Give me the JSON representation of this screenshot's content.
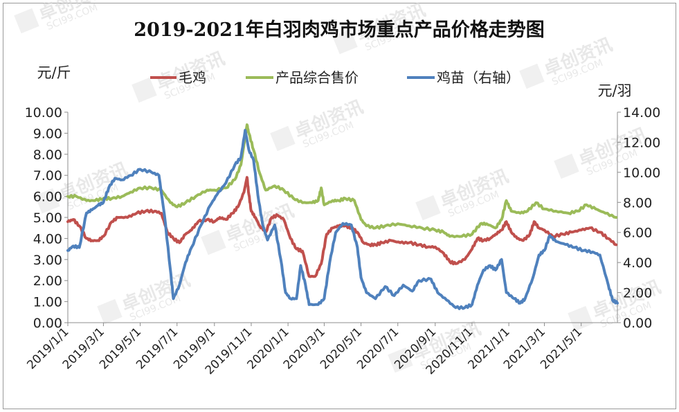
{
  "colors": {
    "maoji": "#c0504d",
    "zonghe": "#9bbb59",
    "jimiao": "#4f81bd"
  },
  "chart_data": {
    "type": "line",
    "title": "2019-2021年白羽肉鸡市场重点产品价格走势图",
    "left_unit": "元/斤",
    "right_unit": "元/羽",
    "watermark": "卓创资讯 SCI99.COM",
    "y_left": {
      "min": 0,
      "max": 10,
      "step": 1,
      "ticks": [
        "0.00",
        "1.00",
        "2.00",
        "3.00",
        "4.00",
        "5.00",
        "6.00",
        "7.00",
        "8.00",
        "9.00",
        "10.00"
      ]
    },
    "y_right": {
      "min": 0,
      "max": 14,
      "step": 2,
      "ticks": [
        "0.00",
        "2.00",
        "4.00",
        "6.00",
        "8.00",
        "10.00",
        "12.00",
        "14.00"
      ]
    },
    "x_start": "2019-01-01",
    "x_end": "2021-06-30",
    "x_ticks": [
      "2019/1/1",
      "2019/3/1",
      "2019/5/1",
      "2019/7/1",
      "2019/9/1",
      "2019/11/1",
      "2020/1/1",
      "2020/3/1",
      "2020/5/1",
      "2020/7/1",
      "2020/9/1",
      "2020/11/1",
      "2021/1/1",
      "2021/3/1",
      "2021/5/1"
    ],
    "series": [
      {
        "name": "毛鸡",
        "axis": "left",
        "color": "#c0504d",
        "points": [
          [
            "2019-01-01",
            4.8
          ],
          [
            "2019-01-10",
            4.9
          ],
          [
            "2019-01-20",
            4.6
          ],
          [
            "2019-02-01",
            4.0
          ],
          [
            "2019-02-10",
            3.9
          ],
          [
            "2019-02-20",
            3.9
          ],
          [
            "2019-03-01",
            4.1
          ],
          [
            "2019-03-15",
            4.8
          ],
          [
            "2019-03-25",
            5.0
          ],
          [
            "2019-04-10",
            5.0
          ],
          [
            "2019-04-25",
            5.2
          ],
          [
            "2019-05-10",
            5.3
          ],
          [
            "2019-05-25",
            5.3
          ],
          [
            "2019-06-05",
            5.2
          ],
          [
            "2019-06-15",
            4.3
          ],
          [
            "2019-06-25",
            4.0
          ],
          [
            "2019-07-05",
            3.8
          ],
          [
            "2019-07-15",
            4.2
          ],
          [
            "2019-07-25",
            4.4
          ],
          [
            "2019-08-05",
            4.8
          ],
          [
            "2019-08-20",
            4.9
          ],
          [
            "2019-09-01",
            4.8
          ],
          [
            "2019-09-10",
            5.0
          ],
          [
            "2019-09-20",
            4.9
          ],
          [
            "2019-10-01",
            5.2
          ],
          [
            "2019-10-10",
            5.5
          ],
          [
            "2019-10-20",
            6.2
          ],
          [
            "2019-10-25",
            6.9
          ],
          [
            "2019-10-28",
            6.1
          ],
          [
            "2019-11-01",
            5.3
          ],
          [
            "2019-11-08",
            5.0
          ],
          [
            "2019-11-15",
            4.6
          ],
          [
            "2019-11-25",
            4.3
          ],
          [
            "2019-12-05",
            5.0
          ],
          [
            "2019-12-15",
            5.1
          ],
          [
            "2019-12-25",
            4.9
          ],
          [
            "2020-01-05",
            4.0
          ],
          [
            "2020-01-15",
            3.5
          ],
          [
            "2020-01-25",
            3.4
          ],
          [
            "2020-02-05",
            2.2
          ],
          [
            "2020-02-15",
            2.2
          ],
          [
            "2020-02-25",
            2.8
          ],
          [
            "2020-03-05",
            4.2
          ],
          [
            "2020-03-15",
            4.5
          ],
          [
            "2020-03-25",
            4.6
          ],
          [
            "2020-04-05",
            4.6
          ],
          [
            "2020-04-15",
            4.5
          ],
          [
            "2020-04-25",
            4.3
          ],
          [
            "2020-05-05",
            3.8
          ],
          [
            "2020-05-15",
            3.7
          ],
          [
            "2020-05-25",
            3.7
          ],
          [
            "2020-06-05",
            3.8
          ],
          [
            "2020-06-20",
            3.9
          ],
          [
            "2020-07-05",
            3.8
          ],
          [
            "2020-07-20",
            3.8
          ],
          [
            "2020-08-05",
            3.7
          ],
          [
            "2020-08-20",
            3.6
          ],
          [
            "2020-09-01",
            3.6
          ],
          [
            "2020-09-15",
            3.3
          ],
          [
            "2020-09-25",
            2.9
          ],
          [
            "2020-10-05",
            2.8
          ],
          [
            "2020-10-20",
            3.0
          ],
          [
            "2020-11-01",
            3.5
          ],
          [
            "2020-11-10",
            4.0
          ],
          [
            "2020-11-20",
            3.9
          ],
          [
            "2020-12-01",
            4.0
          ],
          [
            "2020-12-10",
            4.2
          ],
          [
            "2020-12-20",
            4.4
          ],
          [
            "2020-12-28",
            4.8
          ],
          [
            "2021-01-05",
            4.3
          ],
          [
            "2021-01-15",
            4.0
          ],
          [
            "2021-01-25",
            3.9
          ],
          [
            "2021-02-05",
            4.2
          ],
          [
            "2021-02-12",
            4.8
          ],
          [
            "2021-02-20",
            4.5
          ],
          [
            "2021-03-01",
            4.4
          ],
          [
            "2021-03-15",
            4.1
          ],
          [
            "2021-04-01",
            4.2
          ],
          [
            "2021-04-15",
            4.3
          ],
          [
            "2021-05-01",
            4.4
          ],
          [
            "2021-05-15",
            4.5
          ],
          [
            "2021-06-01",
            4.3
          ],
          [
            "2021-06-15",
            4.0
          ],
          [
            "2021-06-28",
            3.7
          ]
        ]
      },
      {
        "name": "产品综合售价",
        "axis": "left",
        "color": "#9bbb59",
        "points": [
          [
            "2019-01-01",
            6.0
          ],
          [
            "2019-01-15",
            6.0
          ],
          [
            "2019-02-01",
            5.8
          ],
          [
            "2019-02-15",
            5.8
          ],
          [
            "2019-03-01",
            5.9
          ],
          [
            "2019-03-15",
            5.9
          ],
          [
            "2019-04-01",
            6.0
          ],
          [
            "2019-04-15",
            6.2
          ],
          [
            "2019-05-01",
            6.4
          ],
          [
            "2019-05-20",
            6.4
          ],
          [
            "2019-06-05",
            6.3
          ],
          [
            "2019-06-20",
            5.7
          ],
          [
            "2019-07-01",
            5.5
          ],
          [
            "2019-07-15",
            5.7
          ],
          [
            "2019-08-01",
            6.0
          ],
          [
            "2019-08-20",
            6.3
          ],
          [
            "2019-09-01",
            6.3
          ],
          [
            "2019-09-20",
            6.4
          ],
          [
            "2019-10-05",
            6.8
          ],
          [
            "2019-10-15",
            7.5
          ],
          [
            "2019-10-25",
            9.4
          ],
          [
            "2019-10-28",
            9.0
          ],
          [
            "2019-11-05",
            8.2
          ],
          [
            "2019-11-15",
            7.1
          ],
          [
            "2019-11-25",
            6.3
          ],
          [
            "2019-12-10",
            6.5
          ],
          [
            "2019-12-25",
            6.3
          ],
          [
            "2020-01-10",
            5.9
          ],
          [
            "2020-01-25",
            5.7
          ],
          [
            "2020-02-10",
            5.7
          ],
          [
            "2020-02-20",
            5.8
          ],
          [
            "2020-02-25",
            6.4
          ],
          [
            "2020-03-01",
            5.6
          ],
          [
            "2020-03-15",
            5.8
          ],
          [
            "2020-03-25",
            5.8
          ],
          [
            "2020-04-05",
            5.9
          ],
          [
            "2020-04-20",
            5.8
          ],
          [
            "2020-05-01",
            4.9
          ],
          [
            "2020-05-10",
            4.6
          ],
          [
            "2020-05-25",
            4.5
          ],
          [
            "2020-06-10",
            4.6
          ],
          [
            "2020-07-01",
            4.7
          ],
          [
            "2020-07-20",
            4.6
          ],
          [
            "2020-08-10",
            4.5
          ],
          [
            "2020-09-01",
            4.4
          ],
          [
            "2020-09-15",
            4.3
          ],
          [
            "2020-09-25",
            4.1
          ],
          [
            "2020-10-15",
            4.1
          ],
          [
            "2020-11-01",
            4.2
          ],
          [
            "2020-11-15",
            4.7
          ],
          [
            "2020-11-25",
            4.7
          ],
          [
            "2020-12-10",
            4.5
          ],
          [
            "2020-12-20",
            4.9
          ],
          [
            "2020-12-28",
            5.8
          ],
          [
            "2021-01-05",
            5.3
          ],
          [
            "2021-01-20",
            5.2
          ],
          [
            "2021-02-01",
            5.3
          ],
          [
            "2021-02-15",
            5.7
          ],
          [
            "2021-03-01",
            5.4
          ],
          [
            "2021-03-20",
            5.3
          ],
          [
            "2021-04-10",
            5.2
          ],
          [
            "2021-04-25",
            5.3
          ],
          [
            "2021-05-10",
            5.6
          ],
          [
            "2021-05-25",
            5.4
          ],
          [
            "2021-06-10",
            5.2
          ],
          [
            "2021-06-28",
            5.0
          ]
        ]
      },
      {
        "name": "鸡苗（右轴）",
        "axis": "right",
        "color": "#4f81bd",
        "points": [
          [
            "2019-01-01",
            4.8
          ],
          [
            "2019-01-10",
            5.1
          ],
          [
            "2019-01-20",
            5.0
          ],
          [
            "2019-02-01",
            7.3
          ],
          [
            "2019-02-10",
            7.5
          ],
          [
            "2019-02-20",
            7.8
          ],
          [
            "2019-03-01",
            8.0
          ],
          [
            "2019-03-10",
            9.0
          ],
          [
            "2019-03-20",
            9.6
          ],
          [
            "2019-04-01",
            9.5
          ],
          [
            "2019-04-15",
            9.8
          ],
          [
            "2019-05-01",
            10.2
          ],
          [
            "2019-05-20",
            10.0
          ],
          [
            "2019-06-01",
            9.8
          ],
          [
            "2019-06-10",
            7.2
          ],
          [
            "2019-06-20",
            3.5
          ],
          [
            "2019-06-25",
            1.6
          ],
          [
            "2019-07-05",
            2.5
          ],
          [
            "2019-07-15",
            4.0
          ],
          [
            "2019-07-25",
            5.0
          ],
          [
            "2019-08-10",
            6.5
          ],
          [
            "2019-08-25",
            7.8
          ],
          [
            "2019-09-05",
            8.5
          ],
          [
            "2019-09-20",
            9.3
          ],
          [
            "2019-10-05",
            10.5
          ],
          [
            "2019-10-15",
            11.0
          ],
          [
            "2019-10-22",
            12.8
          ],
          [
            "2019-10-28",
            11.5
          ],
          [
            "2019-11-05",
            10.8
          ],
          [
            "2019-11-12",
            8.5
          ],
          [
            "2019-11-20",
            6.5
          ],
          [
            "2019-11-28",
            5.5
          ],
          [
            "2019-12-10",
            6.5
          ],
          [
            "2019-12-20",
            4.2
          ],
          [
            "2019-12-28",
            2.0
          ],
          [
            "2020-01-05",
            1.6
          ],
          [
            "2020-01-15",
            1.6
          ],
          [
            "2020-01-22",
            3.8
          ],
          [
            "2020-01-30",
            2.5
          ],
          [
            "2020-02-05",
            1.2
          ],
          [
            "2020-02-20",
            1.2
          ],
          [
            "2020-03-01",
            1.6
          ],
          [
            "2020-03-10",
            4.0
          ],
          [
            "2020-03-20",
            6.0
          ],
          [
            "2020-04-01",
            6.6
          ],
          [
            "2020-04-15",
            6.5
          ],
          [
            "2020-04-25",
            5.0
          ],
          [
            "2020-05-01",
            3.0
          ],
          [
            "2020-05-10",
            2.0
          ],
          [
            "2020-05-25",
            1.6
          ],
          [
            "2020-06-10",
            2.4
          ],
          [
            "2020-06-25",
            1.8
          ],
          [
            "2020-07-10",
            2.5
          ],
          [
            "2020-07-25",
            2.1
          ],
          [
            "2020-08-05",
            2.8
          ],
          [
            "2020-08-25",
            2.9
          ],
          [
            "2020-09-05",
            2.0
          ],
          [
            "2020-09-20",
            1.5
          ],
          [
            "2020-10-05",
            1.0
          ],
          [
            "2020-10-20",
            1.0
          ],
          [
            "2020-11-01",
            1.2
          ],
          [
            "2020-11-10",
            2.5
          ],
          [
            "2020-11-20",
            3.5
          ],
          [
            "2020-12-01",
            3.8
          ],
          [
            "2020-12-10",
            3.5
          ],
          [
            "2020-12-20",
            4.2
          ],
          [
            "2020-12-28",
            2.0
          ],
          [
            "2021-01-10",
            1.6
          ],
          [
            "2021-01-20",
            1.3
          ],
          [
            "2021-01-28",
            1.6
          ],
          [
            "2021-02-10",
            3.0
          ],
          [
            "2021-02-20",
            4.5
          ],
          [
            "2021-03-01",
            4.8
          ],
          [
            "2021-03-10",
            5.8
          ],
          [
            "2021-03-20",
            5.4
          ],
          [
            "2021-04-05",
            5.2
          ],
          [
            "2021-04-20",
            5.0
          ],
          [
            "2021-05-05",
            4.8
          ],
          [
            "2021-05-20",
            4.7
          ],
          [
            "2021-06-01",
            4.5
          ],
          [
            "2021-06-15",
            2.5
          ],
          [
            "2021-06-22",
            1.5
          ],
          [
            "2021-06-30",
            1.3
          ]
        ]
      }
    ]
  }
}
